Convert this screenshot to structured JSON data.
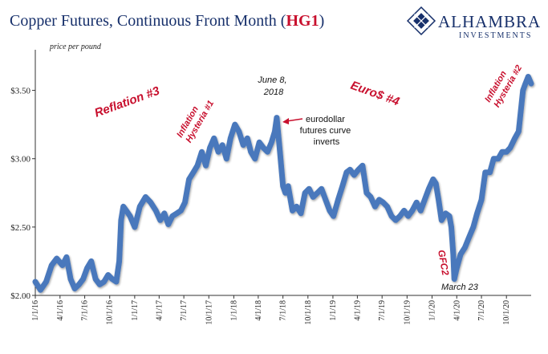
{
  "header": {
    "title_main": "Copper Futures, Continuous Front Month (",
    "title_ticker": "HG1",
    "title_close": ")",
    "logo_name": "ALHAMBRA",
    "logo_sub": "INVESTMENTS"
  },
  "colors": {
    "line": "#4a78bc",
    "title": "#17306b",
    "accent": "#c8102e",
    "axis": "#333333"
  },
  "chart_data": {
    "type": "line",
    "title": "Copper Futures, Continuous Front Month (HG1)",
    "ylabel": "price per pound",
    "ylim": [
      2.0,
      3.75
    ],
    "y_ticks": [
      "$2.00",
      "$2.50",
      "$3.00",
      "$3.50"
    ],
    "x_ticks": [
      "1/1/16",
      "4/1/16",
      "7/1/16",
      "10/1/16",
      "1/1/17",
      "4/1/17",
      "7/1/17",
      "10/1/17",
      "1/1/18",
      "4/1/18",
      "7/1/18",
      "10/1/18",
      "1/1/19",
      "4/1/19",
      "7/1/19",
      "10/1/19",
      "1/1/20",
      "4/1/20",
      "7/1/20",
      "10/1/20"
    ],
    "xlim": [
      "2016-01-01",
      "2020-12-31"
    ],
    "series": [
      {
        "x": [
          "2016-01-01",
          "2016-01-20",
          "2016-02-10",
          "2016-03-01",
          "2016-03-20",
          "2016-04-10",
          "2016-04-25",
          "2016-05-10",
          "2016-05-25",
          "2016-06-10",
          "2016-06-25",
          "2016-07-10",
          "2016-07-25",
          "2016-08-10",
          "2016-08-25",
          "2016-09-10",
          "2016-09-25",
          "2016-10-10",
          "2016-10-25",
          "2016-11-05",
          "2016-11-12",
          "2016-11-20",
          "2016-12-01",
          "2016-12-15",
          "2017-01-01",
          "2017-01-20",
          "2017-02-10",
          "2017-03-01",
          "2017-03-20",
          "2017-04-05",
          "2017-04-20",
          "2017-05-05",
          "2017-05-20",
          "2017-06-05",
          "2017-06-20",
          "2017-07-05",
          "2017-07-20",
          "2017-08-05",
          "2017-08-20",
          "2017-09-05",
          "2017-09-20",
          "2017-10-05",
          "2017-10-20",
          "2017-11-05",
          "2017-11-20",
          "2017-12-05",
          "2017-12-20",
          "2018-01-05",
          "2018-01-20",
          "2018-02-05",
          "2018-02-20",
          "2018-03-05",
          "2018-03-20",
          "2018-04-05",
          "2018-04-20",
          "2018-05-05",
          "2018-05-20",
          "2018-06-01",
          "2018-06-08",
          "2018-06-20",
          "2018-07-01",
          "2018-07-10",
          "2018-07-20",
          "2018-08-05",
          "2018-08-20",
          "2018-09-05",
          "2018-09-20",
          "2018-10-05",
          "2018-10-20",
          "2018-11-05",
          "2018-11-20",
          "2018-12-05",
          "2018-12-20",
          "2019-01-03",
          "2019-01-20",
          "2019-02-05",
          "2019-02-20",
          "2019-03-05",
          "2019-03-20",
          "2019-04-05",
          "2019-04-20",
          "2019-05-05",
          "2019-05-20",
          "2019-06-05",
          "2019-06-20",
          "2019-07-05",
          "2019-07-20",
          "2019-08-05",
          "2019-08-20",
          "2019-09-05",
          "2019-09-20",
          "2019-10-05",
          "2019-10-20",
          "2019-11-05",
          "2019-11-20",
          "2019-12-05",
          "2019-12-20",
          "2020-01-05",
          "2020-01-15",
          "2020-01-25",
          "2020-02-05",
          "2020-02-20",
          "2020-03-05",
          "2020-03-12",
          "2020-03-19",
          "2020-03-23",
          "2020-04-01",
          "2020-04-15",
          "2020-05-01",
          "2020-05-15",
          "2020-06-01",
          "2020-06-15",
          "2020-07-01",
          "2020-07-15",
          "2020-08-01",
          "2020-08-15",
          "2020-09-01",
          "2020-09-15",
          "2020-10-01",
          "2020-10-15",
          "2020-11-01",
          "2020-11-15",
          "2020-12-01",
          "2020-12-10",
          "2020-12-20",
          "2020-12-31"
        ],
        "y": [
          2.1,
          2.04,
          2.1,
          2.22,
          2.27,
          2.22,
          2.28,
          2.12,
          2.05,
          2.08,
          2.12,
          2.2,
          2.25,
          2.12,
          2.08,
          2.1,
          2.15,
          2.12,
          2.1,
          2.25,
          2.55,
          2.65,
          2.62,
          2.58,
          2.5,
          2.65,
          2.72,
          2.68,
          2.62,
          2.55,
          2.6,
          2.52,
          2.58,
          2.6,
          2.62,
          2.68,
          2.85,
          2.9,
          2.95,
          3.05,
          2.95,
          3.08,
          3.15,
          3.05,
          3.1,
          3.0,
          3.15,
          3.25,
          3.2,
          3.1,
          3.15,
          3.05,
          3.0,
          3.12,
          3.08,
          3.05,
          3.12,
          3.2,
          3.3,
          3.05,
          2.8,
          2.75,
          2.8,
          2.62,
          2.65,
          2.6,
          2.75,
          2.78,
          2.72,
          2.75,
          2.78,
          2.7,
          2.62,
          2.58,
          2.7,
          2.8,
          2.9,
          2.92,
          2.88,
          2.92,
          2.95,
          2.75,
          2.72,
          2.65,
          2.7,
          2.68,
          2.65,
          2.58,
          2.55,
          2.58,
          2.62,
          2.58,
          2.62,
          2.68,
          2.62,
          2.7,
          2.78,
          2.85,
          2.82,
          2.7,
          2.55,
          2.6,
          2.58,
          2.5,
          2.3,
          2.12,
          2.2,
          2.3,
          2.35,
          2.42,
          2.5,
          2.6,
          2.7,
          2.9,
          2.9,
          3.0,
          3.0,
          3.05,
          3.05,
          3.08,
          3.15,
          3.2,
          3.5,
          3.55,
          3.6,
          3.55
        ]
      }
    ],
    "annotations": {
      "reflation3": "Reflation #3",
      "inflation1": [
        "Inflation",
        "Hysteria #1"
      ],
      "june8": [
        "June 8,",
        "2018"
      ],
      "eurodollar": [
        "eurodollar",
        "futures curve",
        "inverts"
      ],
      "euro4": "Euro$ #4",
      "inflation2": [
        "Inflation",
        "Hysteria #2"
      ],
      "gfc2": "GFC2",
      "march23": "March 23"
    }
  }
}
